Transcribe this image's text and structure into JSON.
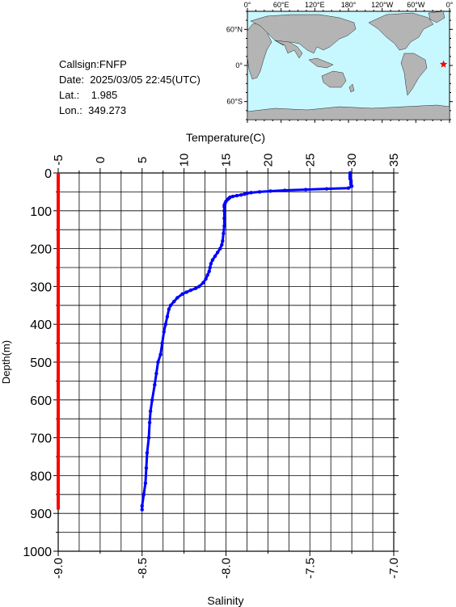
{
  "header": {
    "callsign_line": "Callsign:FNFP",
    "date_line": "Date:  2025/03/05 22:45(UTC)",
    "lat_line": "Lat.:    1.985",
    "lon_line": "Lon.:  349.273"
  },
  "map": {
    "lon_labels": [
      "0°",
      "60°E",
      "120°E",
      "180°",
      "120°W",
      "60°W",
      "0°"
    ],
    "lat_labels": [
      "60°N",
      "0°",
      "60°S"
    ],
    "station_lon": 349.273,
    "station_lat": 1.985,
    "ocean_color": "#c8f8ff",
    "land_color": "#b4b4b4",
    "marker_color": "#ff0000"
  },
  "chart_data": {
    "type": "line",
    "title": "",
    "xlabel_top": "Temperature(C)",
    "xlabel_bottom": "Salinity",
    "ylabel": "Depth(m)",
    "y_ticks": [
      "0",
      "100",
      "200",
      "300",
      "400",
      "500",
      "600",
      "700",
      "800",
      "900",
      "1000"
    ],
    "temp_ticks": [
      "-5",
      "0",
      "5",
      "10",
      "15",
      "20",
      "25",
      "30",
      "35"
    ],
    "sal_ticks": [
      "-9.0",
      "-8.5",
      "-8.0",
      "-7.5",
      "-7.0"
    ],
    "temp_range": [
      -5,
      35
    ],
    "sal_range": [
      -9.0,
      -7.0
    ],
    "depth_range": [
      0,
      1000
    ],
    "grid": true,
    "series": [
      {
        "quantity": "temperature",
        "color": "#0000ff",
        "depth": [
          0,
          5,
          10,
          15,
          20,
          25,
          30,
          35,
          40,
          42,
          44,
          46,
          48,
          50,
          52,
          54,
          56,
          58,
          60,
          62,
          64,
          66,
          68,
          70,
          75,
          80,
          85,
          90,
          100,
          120,
          140,
          160,
          180,
          190,
          200,
          210,
          220,
          230,
          240,
          250,
          260,
          270,
          280,
          290,
          300,
          305,
          310,
          315,
          320,
          330,
          340,
          350,
          360,
          380,
          400,
          420,
          450,
          480,
          500,
          530,
          560,
          600,
          630,
          660,
          700,
          740,
          780,
          820,
          850,
          880,
          890
        ],
        "values": [
          29.8,
          29.8,
          29.8,
          29.8,
          29.9,
          29.9,
          29.9,
          30.0,
          29.6,
          27.0,
          24.5,
          22.0,
          20.3,
          19.0,
          18.0,
          17.5,
          17.2,
          16.8,
          16.3,
          15.8,
          15.5,
          15.4,
          15.3,
          15.2,
          15.0,
          14.9,
          14.8,
          14.8,
          14.8,
          14.8,
          14.8,
          14.7,
          14.6,
          14.5,
          14.3,
          14.0,
          13.7,
          13.4,
          13.2,
          13.1,
          13.0,
          12.8,
          12.6,
          12.3,
          11.8,
          11.4,
          10.8,
          10.3,
          9.8,
          9.2,
          8.8,
          8.4,
          8.2,
          8.0,
          7.8,
          7.6,
          7.4,
          7.2,
          6.9,
          6.7,
          6.5,
          6.2,
          6.0,
          5.9,
          5.8,
          5.6,
          5.5,
          5.4,
          5.2,
          5.0,
          5.0
        ]
      },
      {
        "quantity": "salinity",
        "color": "#ff0000",
        "depth": [
          0,
          890
        ],
        "values": [
          -9.0,
          -9.0
        ]
      }
    ]
  }
}
